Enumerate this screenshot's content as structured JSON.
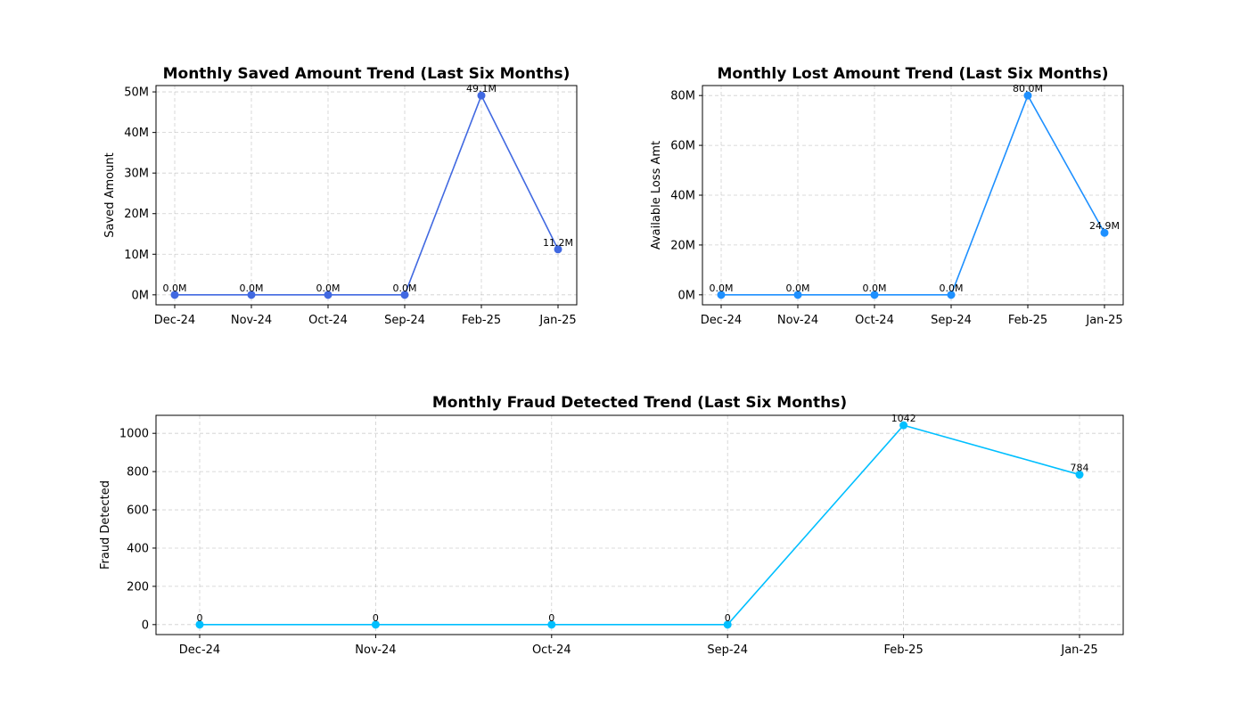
{
  "chart_data": [
    {
      "type": "line",
      "title": "Monthly Saved Amount Trend (Last Six Months)",
      "xlabel": "",
      "ylabel": "Saved Amount",
      "categories": [
        "Dec-24",
        "Nov-24",
        "Oct-24",
        "Sep-24",
        "Feb-25",
        "Jan-25"
      ],
      "values": [
        0,
        0,
        0,
        0,
        49.1,
        11.2
      ],
      "value_unit": "M",
      "data_labels": [
        "0.0M",
        "0.0M",
        "0.0M",
        "0.0M",
        "49.1M",
        "11.2M"
      ],
      "yticks": [
        0,
        10,
        20,
        30,
        40,
        50
      ],
      "ytick_labels": [
        "0M",
        "10M",
        "20M",
        "30M",
        "40M",
        "50M"
      ],
      "ylim": [
        -2.455,
        51.555
      ],
      "color": "#4169e1",
      "grid": true
    },
    {
      "type": "line",
      "title": "Monthly Lost Amount Trend (Last Six Months)",
      "xlabel": "",
      "ylabel": "Available Loss Amt",
      "categories": [
        "Dec-24",
        "Nov-24",
        "Oct-24",
        "Sep-24",
        "Feb-25",
        "Jan-25"
      ],
      "values": [
        0,
        0,
        0,
        0,
        80.0,
        24.9
      ],
      "value_unit": "M",
      "data_labels": [
        "0.0M",
        "0.0M",
        "0.0M",
        "0.0M",
        "80.0M",
        "24.9M"
      ],
      "yticks": [
        0,
        20,
        40,
        60,
        80
      ],
      "ytick_labels": [
        "0M",
        "20M",
        "40M",
        "60M",
        "80M"
      ],
      "ylim": [
        -4.0,
        84.0
      ],
      "color": "#1e90ff",
      "grid": true
    },
    {
      "type": "line",
      "title": "Monthly Fraud Detected Trend (Last Six Months)",
      "xlabel": "",
      "ylabel": "Fraud Detected",
      "categories": [
        "Dec-24",
        "Nov-24",
        "Oct-24",
        "Sep-24",
        "Feb-25",
        "Jan-25"
      ],
      "values": [
        0,
        0,
        0,
        0,
        1042,
        784
      ],
      "data_labels": [
        "0",
        "0",
        "0",
        "0",
        "1042",
        "784"
      ],
      "yticks": [
        0,
        200,
        400,
        600,
        800,
        1000
      ],
      "ytick_labels": [
        "0",
        "200",
        "400",
        "600",
        "800",
        "1000"
      ],
      "ylim": [
        -52.1,
        1094.1
      ],
      "color": "#00bfff",
      "grid": true
    }
  ]
}
